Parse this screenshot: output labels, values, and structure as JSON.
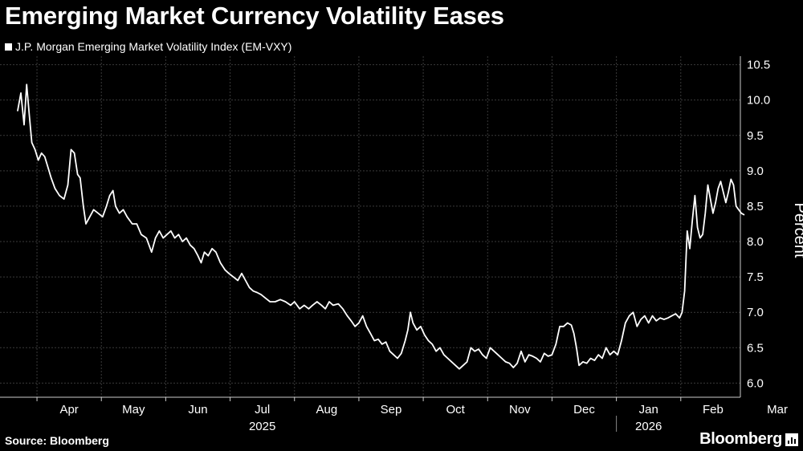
{
  "header": {
    "title": "Emerging Market Currency Volatility Eases",
    "legend_label": "J.P. Morgan Emerging Market Volatility Index (EM-VXY)"
  },
  "footer": {
    "source": "Source: Bloomberg",
    "brand": "Bloomberg"
  },
  "colors": {
    "background": "#000000",
    "line": "#ffffff",
    "grid": "#3a3a3a",
    "text": "#ffffff"
  },
  "chart_data": {
    "type": "line",
    "title": "Emerging Market Currency Volatility Eases",
    "ylabel": "Percent",
    "ylim": [
      6.0,
      10.5
    ],
    "yticks": [
      6.0,
      6.5,
      7.0,
      7.5,
      8.0,
      8.5,
      9.0,
      9.5,
      10.0,
      10.5
    ],
    "ytick_labels": [
      "6.0",
      "6.5",
      "7.0",
      "7.5",
      "8.0",
      "8.5",
      "9.0",
      "9.5",
      "10.0",
      "10.5"
    ],
    "grid": true,
    "x_start_month": 2.7,
    "x_end_month": 14.2,
    "month_labels": [
      {
        "label": "Apr",
        "month": 3
      },
      {
        "label": "May",
        "month": 4
      },
      {
        "label": "Jun",
        "month": 5
      },
      {
        "label": "Jul",
        "month": 6
      },
      {
        "label": "Aug",
        "month": 7
      },
      {
        "label": "Sep",
        "month": 8
      },
      {
        "label": "Oct",
        "month": 9
      },
      {
        "label": "Nov",
        "month": 10
      },
      {
        "label": "Dec",
        "month": 11
      },
      {
        "label": "Jan",
        "month": 12
      },
      {
        "label": "Feb",
        "month": 13
      },
      {
        "label": "Mar",
        "month": 14
      }
    ],
    "month_boundaries": [
      3,
      4,
      5,
      6,
      7,
      8,
      9,
      10,
      11,
      12,
      13,
      14
    ],
    "year_labels": [
      {
        "label": "2025",
        "month": 7.0
      },
      {
        "label": "2026",
        "month": 13.0
      }
    ],
    "year_divider_month": 11.5,
    "series": [
      {
        "name": "J.P. Morgan Emerging Market Volatility Index (EM-VXY)",
        "points": [
          [
            2.7,
            9.85
          ],
          [
            2.75,
            10.1
          ],
          [
            2.8,
            9.65
          ],
          [
            2.84,
            10.22
          ],
          [
            2.88,
            9.8
          ],
          [
            2.92,
            9.4
          ],
          [
            2.97,
            9.3
          ],
          [
            3.02,
            9.15
          ],
          [
            3.07,
            9.25
          ],
          [
            3.12,
            9.2
          ],
          [
            3.17,
            9.05
          ],
          [
            3.22,
            8.9
          ],
          [
            3.28,
            8.75
          ],
          [
            3.35,
            8.65
          ],
          [
            3.42,
            8.6
          ],
          [
            3.48,
            8.8
          ],
          [
            3.53,
            9.3
          ],
          [
            3.58,
            9.25
          ],
          [
            3.63,
            8.95
          ],
          [
            3.67,
            8.9
          ],
          [
            3.72,
            8.5
          ],
          [
            3.76,
            8.25
          ],
          [
            3.82,
            8.35
          ],
          [
            3.88,
            8.45
          ],
          [
            3.95,
            8.4
          ],
          [
            4.02,
            8.35
          ],
          [
            4.08,
            8.5
          ],
          [
            4.13,
            8.65
          ],
          [
            4.18,
            8.72
          ],
          [
            4.22,
            8.5
          ],
          [
            4.28,
            8.4
          ],
          [
            4.34,
            8.45
          ],
          [
            4.4,
            8.35
          ],
          [
            4.48,
            8.25
          ],
          [
            4.55,
            8.25
          ],
          [
            4.62,
            8.1
          ],
          [
            4.7,
            8.05
          ],
          [
            4.78,
            7.85
          ],
          [
            4.84,
            8.05
          ],
          [
            4.9,
            8.15
          ],
          [
            4.96,
            8.05
          ],
          [
            5.02,
            8.1
          ],
          [
            5.08,
            8.15
          ],
          [
            5.14,
            8.05
          ],
          [
            5.2,
            8.1
          ],
          [
            5.26,
            8.0
          ],
          [
            5.32,
            8.05
          ],
          [
            5.38,
            7.95
          ],
          [
            5.44,
            7.9
          ],
          [
            5.5,
            7.8
          ],
          [
            5.55,
            7.7
          ],
          [
            5.6,
            7.85
          ],
          [
            5.66,
            7.8
          ],
          [
            5.72,
            7.9
          ],
          [
            5.78,
            7.85
          ],
          [
            5.85,
            7.7
          ],
          [
            5.92,
            7.6
          ],
          [
            5.98,
            7.55
          ],
          [
            6.05,
            7.5
          ],
          [
            6.12,
            7.45
          ],
          [
            6.18,
            7.55
          ],
          [
            6.24,
            7.45
          ],
          [
            6.3,
            7.35
          ],
          [
            6.36,
            7.3
          ],
          [
            6.42,
            7.28
          ],
          [
            6.48,
            7.25
          ],
          [
            6.55,
            7.2
          ],
          [
            6.62,
            7.15
          ],
          [
            6.7,
            7.15
          ],
          [
            6.78,
            7.18
          ],
          [
            6.86,
            7.15
          ],
          [
            6.94,
            7.1
          ],
          [
            7.0,
            7.15
          ],
          [
            7.08,
            7.05
          ],
          [
            7.15,
            7.1
          ],
          [
            7.22,
            7.05
          ],
          [
            7.28,
            7.1
          ],
          [
            7.35,
            7.15
          ],
          [
            7.42,
            7.1
          ],
          [
            7.48,
            7.05
          ],
          [
            7.54,
            7.15
          ],
          [
            7.6,
            7.1
          ],
          [
            7.68,
            7.12
          ],
          [
            7.75,
            7.05
          ],
          [
            7.82,
            6.95
          ],
          [
            7.88,
            6.88
          ],
          [
            7.94,
            6.8
          ],
          [
            8.0,
            6.85
          ],
          [
            8.06,
            6.95
          ],
          [
            8.12,
            6.8
          ],
          [
            8.18,
            6.7
          ],
          [
            8.24,
            6.6
          ],
          [
            8.3,
            6.62
          ],
          [
            8.36,
            6.55
          ],
          [
            8.42,
            6.58
          ],
          [
            8.48,
            6.45
          ],
          [
            8.54,
            6.4
          ],
          [
            8.6,
            6.35
          ],
          [
            8.66,
            6.42
          ],
          [
            8.72,
            6.6
          ],
          [
            8.76,
            6.75
          ],
          [
            8.8,
            7.0
          ],
          [
            8.84,
            6.85
          ],
          [
            8.9,
            6.75
          ],
          [
            8.96,
            6.8
          ],
          [
            9.02,
            6.68
          ],
          [
            9.08,
            6.6
          ],
          [
            9.14,
            6.55
          ],
          [
            9.2,
            6.45
          ],
          [
            9.26,
            6.5
          ],
          [
            9.32,
            6.4
          ],
          [
            9.38,
            6.35
          ],
          [
            9.44,
            6.3
          ],
          [
            9.5,
            6.25
          ],
          [
            9.56,
            6.2
          ],
          [
            9.62,
            6.25
          ],
          [
            9.68,
            6.3
          ],
          [
            9.74,
            6.5
          ],
          [
            9.8,
            6.45
          ],
          [
            9.86,
            6.48
          ],
          [
            9.92,
            6.4
          ],
          [
            9.98,
            6.35
          ],
          [
            10.04,
            6.5
          ],
          [
            10.1,
            6.45
          ],
          [
            10.16,
            6.4
          ],
          [
            10.22,
            6.35
          ],
          [
            10.28,
            6.3
          ],
          [
            10.34,
            6.28
          ],
          [
            10.4,
            6.22
          ],
          [
            10.46,
            6.28
          ],
          [
            10.52,
            6.45
          ],
          [
            10.58,
            6.3
          ],
          [
            10.64,
            6.4
          ],
          [
            10.7,
            6.38
          ],
          [
            10.76,
            6.35
          ],
          [
            10.82,
            6.3
          ],
          [
            10.88,
            6.42
          ],
          [
            10.94,
            6.38
          ],
          [
            11.0,
            6.4
          ],
          [
            11.06,
            6.55
          ],
          [
            11.12,
            6.8
          ],
          [
            11.18,
            6.8
          ],
          [
            11.24,
            6.85
          ],
          [
            11.3,
            6.82
          ],
          [
            11.34,
            6.7
          ],
          [
            11.38,
            6.5
          ],
          [
            11.42,
            6.25
          ],
          [
            11.48,
            6.3
          ],
          [
            11.54,
            6.28
          ],
          [
            11.6,
            6.35
          ],
          [
            11.66,
            6.32
          ],
          [
            11.72,
            6.4
          ],
          [
            11.78,
            6.35
          ],
          [
            11.84,
            6.5
          ],
          [
            11.9,
            6.4
          ],
          [
            11.96,
            6.45
          ],
          [
            12.02,
            6.4
          ],
          [
            12.08,
            6.6
          ],
          [
            12.14,
            6.85
          ],
          [
            12.2,
            6.95
          ],
          [
            12.26,
            7.0
          ],
          [
            12.32,
            6.8
          ],
          [
            12.38,
            6.9
          ],
          [
            12.44,
            6.95
          ],
          [
            12.5,
            6.85
          ],
          [
            12.56,
            6.95
          ],
          [
            12.62,
            6.88
          ],
          [
            12.68,
            6.92
          ],
          [
            12.74,
            6.9
          ],
          [
            12.8,
            6.92
          ],
          [
            12.86,
            6.95
          ],
          [
            12.92,
            6.98
          ],
          [
            12.98,
            6.92
          ],
          [
            13.02,
            7.0
          ],
          [
            13.06,
            7.3
          ],
          [
            13.1,
            8.15
          ],
          [
            13.14,
            7.9
          ],
          [
            13.18,
            8.3
          ],
          [
            13.22,
            8.65
          ],
          [
            13.26,
            8.2
          ],
          [
            13.3,
            8.05
          ],
          [
            13.34,
            8.1
          ],
          [
            13.38,
            8.4
          ],
          [
            13.42,
            8.8
          ],
          [
            13.46,
            8.6
          ],
          [
            13.5,
            8.4
          ],
          [
            13.54,
            8.55
          ],
          [
            13.58,
            8.75
          ],
          [
            13.62,
            8.85
          ],
          [
            13.66,
            8.7
          ],
          [
            13.7,
            8.55
          ],
          [
            13.74,
            8.7
          ],
          [
            13.78,
            8.88
          ],
          [
            13.82,
            8.8
          ],
          [
            13.86,
            8.5
          ],
          [
            13.9,
            8.45
          ],
          [
            13.94,
            8.4
          ],
          [
            13.98,
            8.38
          ]
        ]
      }
    ]
  }
}
